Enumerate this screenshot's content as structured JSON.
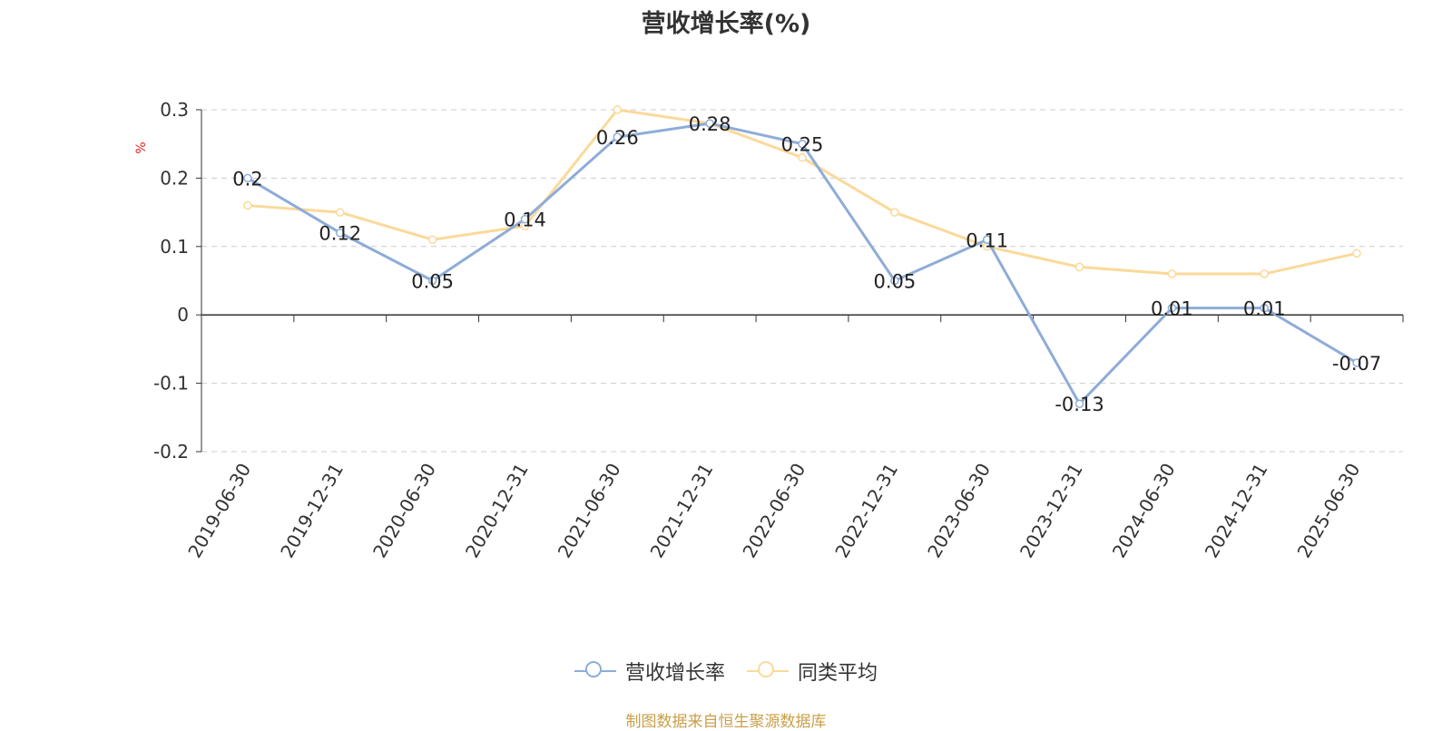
{
  "chart_data": {
    "type": "line",
    "title": "营收增长率(%)",
    "ylabel": "%",
    "xlabel": "",
    "x": [
      "2019-06-30",
      "2019-12-31",
      "2020-06-30",
      "2020-12-31",
      "2021-06-30",
      "2021-12-31",
      "2022-06-30",
      "2022-12-31",
      "2023-06-30",
      "2023-12-31",
      "2024-06-30",
      "2024-12-31",
      "2025-06-30"
    ],
    "ylim": [
      -0.2,
      0.3
    ],
    "yticks": [
      "0.3",
      "0.2",
      "0.1",
      "0",
      "-0.1",
      "-0.2"
    ],
    "grid": true,
    "legend_position": "bottom",
    "series": [
      {
        "name": "营收增长率",
        "color": "#8eacd8",
        "values": [
          0.2,
          0.12,
          0.05,
          0.14,
          0.26,
          0.28,
          0.25,
          0.05,
          0.11,
          -0.13,
          0.01,
          0.01,
          -0.07
        ],
        "labels": [
          "0.2",
          "0.12",
          "0.05",
          "0.14",
          "0.26",
          "0.28",
          "0.25",
          "0.05",
          "0.11",
          "-0.13",
          "0.01",
          "0.01",
          "-0.07"
        ]
      },
      {
        "name": "同类平均",
        "color": "#fbd99a",
        "values": [
          0.16,
          0.15,
          0.11,
          0.13,
          0.3,
          0.28,
          0.23,
          0.15,
          0.1,
          0.07,
          0.06,
          0.06,
          0.09
        ]
      }
    ],
    "source_note": "制图数据来自恒生聚源数据库"
  }
}
